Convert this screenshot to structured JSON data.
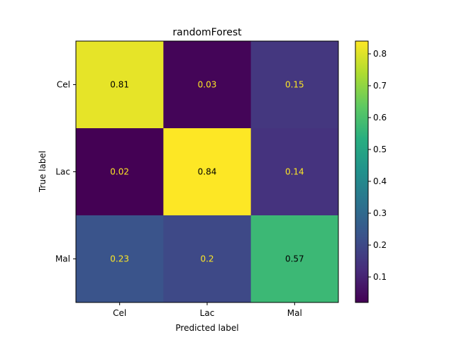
{
  "chart_data": {
    "type": "heatmap",
    "title": "randomForest",
    "xlabel": "Predicted label",
    "ylabel": "True label",
    "x_categories": [
      "Cel",
      "Lac",
      "Mal"
    ],
    "y_categories": [
      "Cel",
      "Lac",
      "Mal"
    ],
    "values": [
      [
        0.81,
        0.03,
        0.15
      ],
      [
        0.02,
        0.84,
        0.14
      ],
      [
        0.23,
        0.2,
        0.57
      ]
    ],
    "value_labels": [
      [
        "0.81",
        "0.03",
        "0.15"
      ],
      [
        "0.02",
        "0.84",
        "0.14"
      ],
      [
        "0.23",
        "0.2",
        "0.57"
      ]
    ],
    "colormap": "viridis",
    "color_range": [
      0.02,
      0.84
    ],
    "colorbar_ticks": [
      0.1,
      0.2,
      0.3,
      0.4,
      0.5,
      0.6,
      0.7,
      0.8
    ],
    "colorbar_tick_labels": [
      "0.1",
      "0.2",
      "0.3",
      "0.4",
      "0.5",
      "0.6",
      "0.7",
      "0.8"
    ],
    "text_color_light": "#fde725",
    "text_color_dark": "#000000",
    "grid": false,
    "legend": "colorbar-right"
  }
}
